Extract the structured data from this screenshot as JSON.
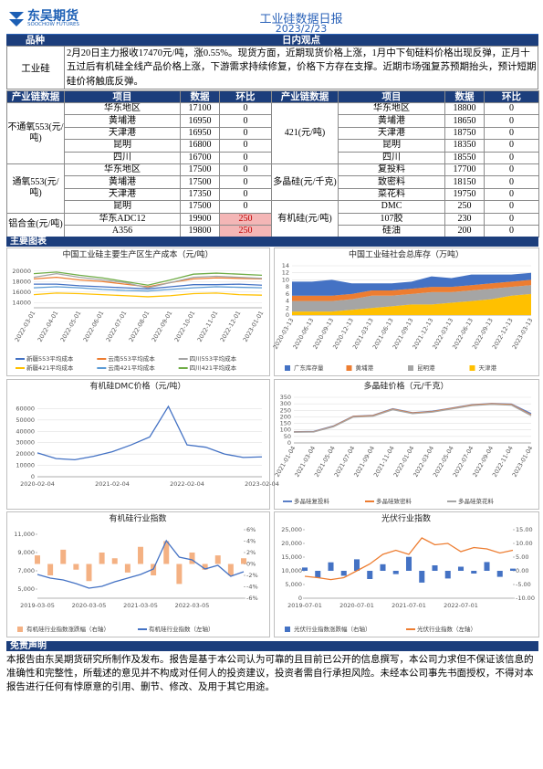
{
  "header": {
    "logo": "东吴期货",
    "logo_en": "SOOCHOW FUTURES",
    "title": "工业硅数据日报",
    "date": "2023/2/23"
  },
  "summary": {
    "headers": [
      "品种",
      "日内观点"
    ],
    "variety": "工业硅",
    "text": "2月20日主力报收17470元/吨，涨0.55%。现货方面，近期现货价格上涨，1月中下旬硅料价格出现反弹，正月十五过后有机硅全线产品价格上涨，下游需求持续修复，价格下方存在支撑。近期市场强复苏预期抬头，预计短期硅价将触底反弹。"
  },
  "table": {
    "headers": [
      "产业链数据",
      "项目",
      "数据",
      "环比",
      "产业链数据",
      "项目",
      "数据",
      "环比"
    ],
    "left": [
      {
        "group": "不通氧553(元/吨)",
        "rows": [
          {
            "item": "华东地区",
            "value": 17100,
            "change": 0
          },
          {
            "item": "黄埔港",
            "value": 16950,
            "change": 0
          },
          {
            "item": "天津港",
            "value": 16950,
            "change": 0
          },
          {
            "item": "昆明",
            "value": 16800,
            "change": 0
          },
          {
            "item": "四川",
            "value": 16700,
            "change": 0
          }
        ]
      },
      {
        "group": "通氧553(元/吨)",
        "rows": [
          {
            "item": "华东地区",
            "value": 17500,
            "change": 0
          },
          {
            "item": "黄埔港",
            "value": 17500,
            "change": 0
          },
          {
            "item": "天津港",
            "value": 17350,
            "change": 0
          },
          {
            "item": "昆明",
            "value": 17500,
            "change": 0
          }
        ]
      },
      {
        "group": "铝合金(元/吨)",
        "rows": [
          {
            "item": "华东ADC12",
            "value": 19900,
            "change": 250
          },
          {
            "item": "A356",
            "value": 19800,
            "change": 250
          }
        ]
      }
    ],
    "right": [
      {
        "group": "421(元/吨)",
        "rows": [
          {
            "item": "华东地区",
            "value": 18800,
            "change": 0
          },
          {
            "item": "黄埔港",
            "value": 18650,
            "change": 0
          },
          {
            "item": "天津港",
            "value": 18750,
            "change": 0
          },
          {
            "item": "昆明",
            "value": 18350,
            "change": 0
          },
          {
            "item": "四川",
            "value": 18550,
            "change": 0
          }
        ]
      },
      {
        "group": "多晶硅(元/千克)",
        "rows": [
          {
            "item": "复投料",
            "value": 17700,
            "change": 0
          },
          {
            "item": "致密料",
            "value": 18150,
            "change": 0
          },
          {
            "item": "菜花料",
            "value": 19750,
            "change": 0
          }
        ]
      },
      {
        "group": "有机硅(元/吨)",
        "rows": [
          {
            "item": "DMC",
            "value": 250,
            "change": 0
          },
          {
            "item": "107胶",
            "value": 230,
            "change": 0
          },
          {
            "item": "硅油",
            "value": 200,
            "change": 0
          }
        ]
      }
    ]
  },
  "sections": [
    "主要图表",
    "免责声明"
  ],
  "disclaimer": "本报告由东吴期货研究所制作及发布。报告是基于本公司认为可靠的且目前已公开的信息撰写，本公司力求但不保证该信息的准确性和完整性，所载述的意见并不构成对任何人的投资建议，投资者需自行承担风险。未经本公司事先书面授权，不得对本报告进行任何有悖原意的引用、删节、修改、及用于其它用途。",
  "chart_data": [
    {
      "type": "line",
      "title": "中国工业硅主要生产区生产成本（元/吨）",
      "categories": [
        "2022-03-01",
        "2022-04-01",
        "2022-05-01",
        "2022-06-01",
        "2022-07-01",
        "2022-08-01",
        "2022-09-01",
        "2022-10-01",
        "2022-11-01",
        "2022-12-01",
        "2023-01-01"
      ],
      "ylim": [
        13000,
        21000
      ],
      "yticks": [
        14000,
        16000,
        18000,
        20000
      ],
      "grid": true,
      "series": [
        {
          "name": "新疆553平均成本",
          "color": "#4472c4",
          "values": [
            17500,
            17500,
            17200,
            17000,
            16800,
            16600,
            17000,
            17400,
            17400,
            17500,
            17300
          ]
        },
        {
          "name": "云南553平均成本",
          "color": "#ed7d31",
          "values": [
            18500,
            18800,
            18300,
            18000,
            17500,
            17000,
            17800,
            18500,
            18700,
            18600,
            18500
          ]
        },
        {
          "name": "四川553平均成本",
          "color": "#a5a5a5",
          "values": [
            18800,
            19500,
            18800,
            18300,
            17800,
            16800,
            17800,
            18800,
            19000,
            18800,
            18600
          ]
        },
        {
          "name": "新疆421平均成本",
          "color": "#ffc000",
          "values": [
            15500,
            15800,
            15700,
            15500,
            15300,
            15100,
            15300,
            15700,
            15800,
            15500,
            15400
          ]
        },
        {
          "name": "云南421平均成本",
          "color": "#5b9bd5",
          "values": [
            16800,
            17000,
            16800,
            16500,
            16300,
            16200,
            16500,
            16800,
            17000,
            16900,
            16800
          ]
        },
        {
          "name": "四川421平均成本",
          "color": "#70ad47",
          "values": [
            19500,
            19800,
            19200,
            18700,
            18000,
            17300,
            18300,
            19400,
            19600,
            19400,
            19200
          ]
        }
      ]
    },
    {
      "type": "area",
      "stacked": true,
      "title": "中国工业硅社会总库存（万吨）",
      "categories": [
        "2020-03-13",
        "2020-06-13",
        "2020-09-13",
        "2020-12-13",
        "2021-03-13",
        "2021-06-13",
        "2021-09-13",
        "2021-12-13",
        "2022-03-13",
        "2022-06-13",
        "2022-09-13",
        "2022-12-13",
        "2023-03-13"
      ],
      "ylim": [
        0,
        14
      ],
      "yticks": [
        0,
        2,
        4,
        6,
        8,
        10,
        12,
        14
      ],
      "grid": true,
      "series": [
        {
          "name": "广东库存量",
          "color": "#4472c4",
          "values": [
            4,
            4,
            4.5,
            3,
            2,
            2,
            2,
            3,
            2.5,
            3,
            2.5,
            2,
            2
          ]
        },
        {
          "name": "黄埔港",
          "color": "#ed7d31",
          "values": [
            1.5,
            1.5,
            1.5,
            1.5,
            1.5,
            1.5,
            1.5,
            1.5,
            1.5,
            1.5,
            1.5,
            1.5,
            1.5
          ]
        },
        {
          "name": "昆明港",
          "color": "#a5a5a5",
          "values": [
            3,
            3,
            3,
            3,
            3.5,
            3,
            3,
            3.5,
            3,
            3,
            3,
            2.5,
            2.5
          ]
        },
        {
          "name": "天津港",
          "color": "#ffc000",
          "values": [
            1,
            1,
            1,
            1.5,
            2,
            2.5,
            3,
            3,
            3.5,
            4,
            4.5,
            5.5,
            6
          ]
        }
      ]
    },
    {
      "type": "line",
      "title": "有机硅DMC价格（元/吨）",
      "categories": [
        "2020-02-04",
        null,
        null,
        null,
        "2021-02-04",
        null,
        null,
        null,
        "2022-02-04",
        null,
        null,
        null,
        "2023-02-04"
      ],
      "ylim": [
        0,
        70000
      ],
      "yticks": [
        0,
        10000,
        20000,
        30000,
        40000,
        50000,
        60000
      ],
      "grid": true,
      "series": [
        {
          "color": "#4472c4",
          "values": [
            21000,
            16000,
            15000,
            18000,
            22000,
            28000,
            35000,
            62000,
            28000,
            26000,
            20000,
            17000,
            17500
          ]
        }
      ]
    },
    {
      "type": "line",
      "title": "多晶硅价格（元/千克）",
      "categories": [
        "2021-01-04",
        "2021-03-04",
        "2021-05-04",
        "2021-07-04",
        "2021-09-04",
        "2021-11-04",
        "2022-01-04",
        "2022-03-04",
        "2022-05-04",
        "2022-07-04",
        "2022-09-04",
        "2022-11-04",
        "2023-01-04"
      ],
      "ylim": [
        0,
        350
      ],
      "yticks": [
        0,
        50,
        100,
        150,
        200,
        250,
        300,
        350
      ],
      "grid": true,
      "series": [
        {
          "name": "多晶硅复投料",
          "color": "#5b7fc7",
          "values": [
            86,
            88,
            130,
            205,
            212,
            262,
            232,
            243,
            268,
            293,
            303,
            298,
            225
          ]
        },
        {
          "name": "多晶硅致密料",
          "color": "#ed7d31",
          "values": [
            84,
            86,
            127,
            202,
            209,
            259,
            229,
            240,
            265,
            290,
            300,
            295,
            215
          ]
        },
        {
          "name": "多晶硅菜花料",
          "color": "#a5a5a5",
          "values": [
            82,
            84,
            124,
            198,
            205,
            255,
            225,
            236,
            261,
            286,
            296,
            290,
            210
          ]
        }
      ]
    },
    {
      "type": "line",
      "title": "有机硅行业指数",
      "categories": [
        "2019-03-05",
        null,
        null,
        null,
        "2020-03-05",
        null,
        null,
        null,
        "2021-03-05",
        null,
        null,
        null,
        "2022-03-05",
        null,
        null,
        null,
        null
      ],
      "ylim": [
        4000,
        11500
      ],
      "yticks": [
        {
          "value": 5000,
          "label": "5,000"
        },
        {
          "value": 7000,
          "label": "7,000"
        },
        {
          "value": 9000,
          "label": "9,000"
        },
        {
          "value": 11000,
          "label": "11,000"
        }
      ],
      "y2lim": [
        -6,
        6
      ],
      "y2ticks": [
        {
          "value": -6,
          "label": "-6%"
        },
        {
          "value": -4,
          "label": "-4%"
        },
        {
          "value": -2,
          "label": "-2%"
        },
        {
          "value": 0,
          "label": "0%"
        },
        {
          "value": 2,
          "label": "2%"
        },
        {
          "value": 4,
          "label": "4%"
        },
        {
          "value": 6,
          "label": "6%"
        }
      ],
      "grid": false,
      "series": [
        {
          "name": "有机硅行业指数涨跌幅（右轴）",
          "type": "bar",
          "axis": "y2",
          "color": "#f4b183",
          "values": [
            1.5,
            -2,
            2.5,
            -1,
            -3,
            2,
            1,
            -1.5,
            3,
            -2,
            4,
            -3.5,
            2,
            -1,
            1.5,
            -2,
            1
          ]
        },
        {
          "name": "有机硅行业指数（左轴）",
          "color": "#4472c4",
          "values": [
            6600,
            6200,
            6000,
            5600,
            5100,
            5300,
            5800,
            6200,
            6600,
            7200,
            10300,
            8500,
            8200,
            7200,
            7600,
            6400,
            6900
          ]
        }
      ]
    },
    {
      "type": "line",
      "title": "光伏行业指数",
      "categories": [
        "2019-07-01",
        null,
        null,
        null,
        "2020-07-01",
        null,
        null,
        null,
        "2021-07-01",
        null,
        null,
        null,
        "2022-07-01",
        null,
        null,
        null,
        null
      ],
      "ylim": [
        0,
        25000
      ],
      "yticks": [
        0,
        {
          "value": 5000,
          "label": "5,000"
        },
        {
          "value": 10000,
          "label": "10,000"
        },
        {
          "value": 15000,
          "label": "15,000"
        },
        {
          "value": 20000,
          "label": "20,000"
        },
        {
          "value": 25000,
          "label": "25,000"
        }
      ],
      "y2lim": [
        -10,
        15
      ],
      "y2ticks": [
        {
          "value": -10,
          "label": "-10.00"
        },
        {
          "value": -5,
          "label": "-5.00"
        },
        {
          "value": 0,
          "label": "0.00"
        },
        {
          "value": 5,
          "label": "5.00"
        },
        {
          "value": 10,
          "label": "10.00"
        },
        {
          "value": 15,
          "label": "15.00"
        }
      ],
      "grid": false,
      "series": [
        {
          "name": "光伏行业指数涨跌幅（右轴）",
          "type": "bar",
          "axis": "y2",
          "color": "#4472c4",
          "values": [
            1.2,
            -2.5,
            3.1,
            -1.8,
            4.2,
            -3,
            2.4,
            -1.2,
            5.1,
            -4.3,
            2,
            -2.8,
            1.5,
            -1,
            3.2,
            -2.2,
            0.8
          ]
        },
        {
          "name": "光伏行业指数（左轴）",
          "color": "#ed7d31",
          "values": [
            8000,
            7500,
            6800,
            7500,
            10000,
            12500,
            16000,
            17500,
            16000,
            22000,
            19500,
            20000,
            17000,
            18500,
            18000,
            16500,
            17500
          ]
        }
      ]
    }
  ]
}
